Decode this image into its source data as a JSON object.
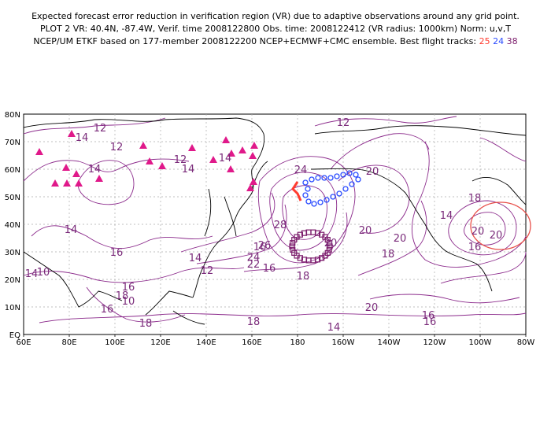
{
  "header": {
    "line1": "Expected forecast error reduction in verification region (VR) due to adaptive observations around any grid point.",
    "line2": "PLOT 2 VR: 40.4N, -87.4W, Verif. time 2008122800 Obs. time: 2008122412 (VR radius: 1000km) Norm: u,v,T",
    "line3_prefix": "NCEP/UM ETKF based on 177-member 2008122200 NCEP+ECMWF+CMC ensemble. Best flight tracks:",
    "tracks": [
      "25",
      "24",
      "38"
    ]
  },
  "colors": {
    "contour": "#8b2a8b",
    "coast": "#000000",
    "triangle": "#e0198a",
    "track25": "#ff3b2f",
    "track24": "#2a4bff",
    "track38": "#7a1a6a",
    "vr_circle": "#e8504a"
  },
  "map": {
    "lon_labels": [
      "60E",
      "80E",
      "100E",
      "120E",
      "140E",
      "160E",
      "180",
      "160W",
      "140W",
      "120W",
      "100W",
      "80W"
    ],
    "lat_labels": [
      "EQ",
      "10N",
      "20N",
      "30N",
      "40N",
      "50N",
      "60N",
      "70N",
      "80N"
    ],
    "contour_labels": [
      "12",
      "14",
      "12",
      "14",
      "12",
      "14",
      "12",
      "14",
      "20",
      "24",
      "20",
      "14",
      "18",
      "20",
      "14",
      "16",
      "28",
      "20",
      "16",
      "14",
      "16",
      "26",
      "24",
      "22",
      "18",
      "16",
      "18",
      "12",
      "14",
      "16",
      "10",
      "16",
      "18",
      "20",
      "18",
      "14",
      "16",
      "16",
      "18",
      "20",
      "20",
      "10"
    ],
    "vr_center": {
      "lat": 40.4,
      "lon": -87.4
    },
    "vr_radius_km": 1000
  }
}
